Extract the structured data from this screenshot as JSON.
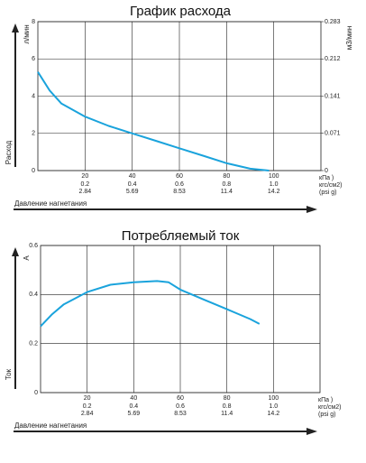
{
  "chart_data": [
    {
      "type": "line",
      "title": "График расхода",
      "y_label": "л/мин",
      "y_axis_title": "Расход",
      "y2_label": "м3/мин",
      "x_label": "Давление нагнетания",
      "x_unit": "кПа )",
      "x": [
        0,
        5,
        10,
        20,
        30,
        40,
        50,
        60,
        70,
        80,
        90,
        98
      ],
      "series": [
        {
          "color": "#1aa3dc",
          "values": [
            5.3,
            4.3,
            3.6,
            2.9,
            2.4,
            2.0,
            1.6,
            1.2,
            0.8,
            0.4,
            0.1,
            0
          ]
        }
      ],
      "xlim": [
        0,
        120
      ],
      "xticks": [
        20,
        40,
        60,
        80,
        100
      ],
      "x_extra_rows": [
        {
          "unit": "кгс/см2)",
          "ticks": [
            0.2,
            0.4,
            0.6,
            0.8,
            {
              "value": 1,
              "label": "1.0"
            }
          ]
        },
        {
          "unit": "(psi g)",
          "ticks": [
            2.84,
            5.69,
            8.53,
            11.4,
            14.2
          ]
        }
      ],
      "ylim": [
        0,
        8
      ],
      "yticks": [
        0,
        2,
        4,
        6,
        8
      ],
      "y2lim": [
        0,
        0.283
      ],
      "y2ticks": [
        0,
        0.071,
        0.141,
        0.212,
        0.283
      ],
      "grid": true
    },
    {
      "type": "line",
      "title": "Потребляемый ток",
      "y_label": "A",
      "y_axis_title": "Ток",
      "x_label": "Давление нагнетания",
      "x_unit": "кПа )",
      "x": [
        0,
        5,
        10,
        20,
        30,
        40,
        50,
        55,
        60,
        70,
        80,
        90,
        94
      ],
      "series": [
        {
          "color": "#1aa3dc",
          "values": [
            0.27,
            0.32,
            0.36,
            0.41,
            0.44,
            0.45,
            0.455,
            0.45,
            0.42,
            0.38,
            0.34,
            0.3,
            0.28
          ]
        }
      ],
      "xlim": [
        0,
        120
      ],
      "xticks": [
        20,
        40,
        60,
        80,
        100
      ],
      "x_extra_rows": [
        {
          "unit": "кгс/см2)",
          "ticks": [
            0.2,
            0.4,
            0.6,
            0.8,
            {
              "value": 1,
              "label": "1.0"
            }
          ]
        },
        {
          "unit": "(psi g)",
          "ticks": [
            2.84,
            5.69,
            8.53,
            11.4,
            14.2
          ]
        }
      ],
      "ylim": [
        0,
        0.6
      ],
      "yticks": [
        0,
        0.2,
        0.4,
        0.6
      ],
      "grid": true
    }
  ]
}
